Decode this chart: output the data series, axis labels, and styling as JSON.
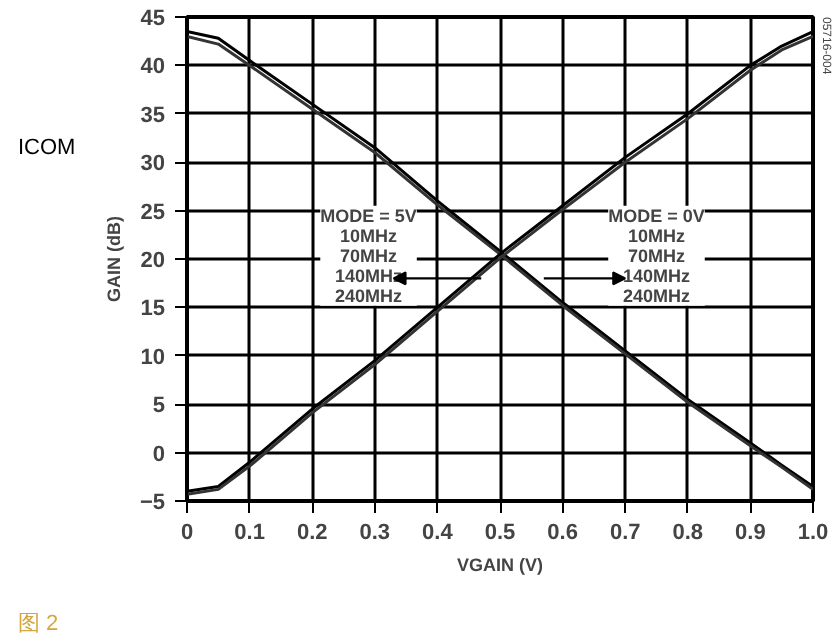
{
  "chart_data": {
    "type": "line",
    "xlabel": "VGAIN (V)",
    "ylabel": "GAIN (dB)",
    "x": [
      0,
      0.05,
      0.1,
      0.2,
      0.3,
      0.4,
      0.5,
      0.6,
      0.7,
      0.8,
      0.9,
      0.95,
      1.0
    ],
    "series": [
      {
        "color": "#000000",
        "values": [
          43.5,
          42.8,
          40.5,
          36,
          31.5,
          26,
          20.8,
          15.5,
          10.5,
          5.5,
          1,
          -1.3,
          -3.5
        ]
      },
      {
        "color": "#333333",
        "values": [
          43,
          42.2,
          40,
          35.5,
          31,
          25.6,
          20.5,
          15.2,
          10.2,
          5.2,
          0.7,
          -1.5,
          -3.8
        ]
      },
      {
        "color": "#000000",
        "values": [
          -4,
          -3.5,
          -1,
          4.5,
          9.5,
          15,
          20.5,
          25.5,
          30.5,
          35,
          40,
          42,
          43.5
        ]
      },
      {
        "color": "#333333",
        "values": [
          -4.3,
          -3.8,
          -1.4,
          4.1,
          9.1,
          14.6,
          20.1,
          25.1,
          30,
          34.5,
          39.5,
          41.6,
          43
        ]
      }
    ],
    "xlim": [
      0,
      1.0
    ],
    "ylim": [
      -5,
      45
    ],
    "xticks": [
      0,
      0.1,
      0.2,
      0.3,
      0.4,
      0.5,
      0.6,
      0.7,
      0.8,
      0.9,
      {
        "value": 1.0,
        "label": "1.0"
      }
    ],
    "yticks": [
      -5,
      0,
      5,
      10,
      15,
      20,
      25,
      30,
      35,
      40,
      45
    ],
    "grid": true,
    "line_style": "solid",
    "annotations": [
      "MODE = 5V\n10MHz\n70MHz\n140MHz\n240MHz",
      "MODE = 0V\n10MHz\n70MHz\n140MHz\n240MHz",
      "ICOM",
      "图 2",
      "05716-004"
    ]
  }
}
